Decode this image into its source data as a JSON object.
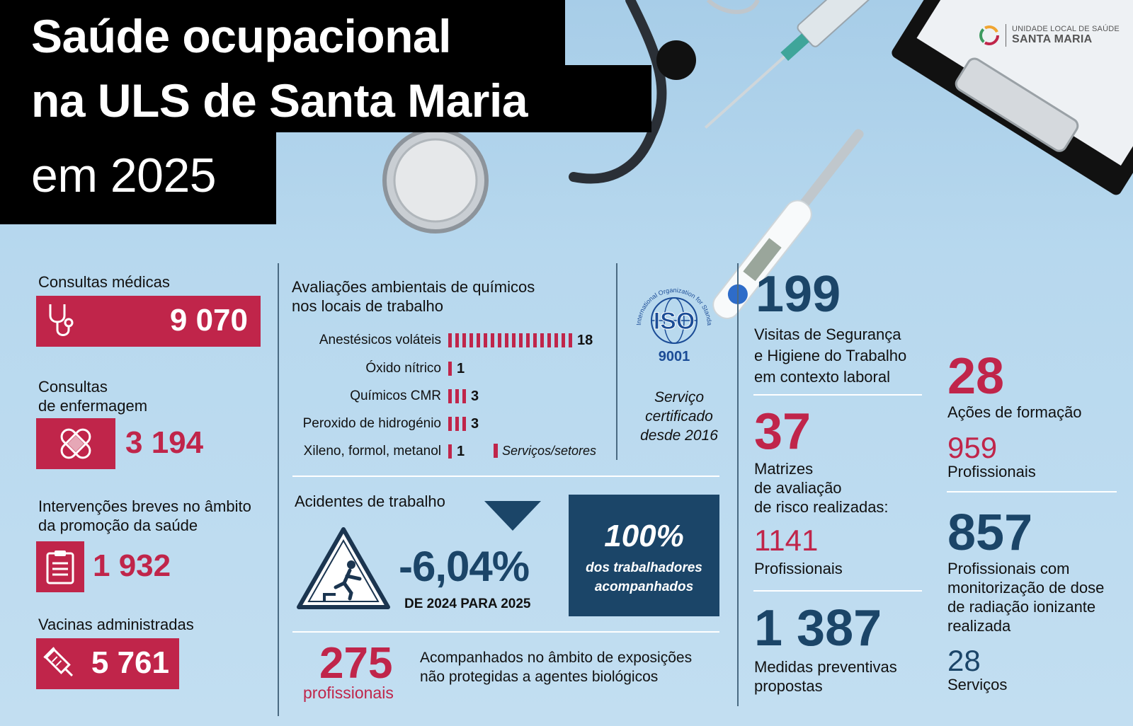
{
  "title": {
    "line1": "Saúde ocupacional",
    "line2": "na ULS de Santa Maria",
    "line3": "em 2025"
  },
  "logo": {
    "small": "UNIDADE LOCAL DE SAÚDE",
    "big": "SANTA MARIA"
  },
  "left": {
    "consultas_medicas": {
      "label": "Consultas médicas",
      "value": "9 070",
      "icon": "stethoscope-icon"
    },
    "consultas_enfermagem": {
      "label1": "Consultas",
      "label2": "de enfermagem",
      "value": "3 194",
      "icon": "bandage-icon"
    },
    "intervencoes": {
      "label1": "Intervenções breves no âmbito",
      "label2": "da promoção da saúde",
      "value": "1 932",
      "icon": "clipboard-icon"
    },
    "vacinas": {
      "label": "Vacinas administradas",
      "value": "5 761",
      "icon": "syringe-icon"
    }
  },
  "chemicals": {
    "title1": "Avaliações ambientais de químicos",
    "title2": "nos locais de trabalho",
    "legend": "Serviços/setores",
    "color": "#c0254a"
  },
  "chart_data": {
    "type": "bar",
    "categories": [
      "Anestésicos voláteis",
      "Óxido nítrico",
      "Químicos CMR",
      "Peroxido de hidrogénio",
      "Xileno, formol, metanol"
    ],
    "values": [
      18,
      1,
      3,
      3,
      1
    ],
    "value_labels": [
      "18",
      "1",
      "3",
      "3",
      "1"
    ],
    "series": [
      {
        "name": "Serviços/setores",
        "values": [
          18,
          1,
          3,
          3,
          1
        ]
      }
    ],
    "orientation": "horizontal"
  },
  "iso": {
    "ring_text": "International Organization for Standardization",
    "logo": "ISO",
    "number": "9001",
    "cert1": "Serviço",
    "cert2": "certificado",
    "cert3": "desde 2016"
  },
  "accidents": {
    "title": "Acidentes de trabalho",
    "change": "-6,04%",
    "period": "DE 2024 PARA 2025",
    "pct": "100%",
    "pct_label1": "dos trabalhadores",
    "pct_label2": "acompanhados",
    "icon": "fall-warning-icon"
  },
  "biological": {
    "value": "275",
    "unit": "profissionais",
    "text1": "Acompanhados no âmbito de exposições",
    "text2": "não protegidas a agentes biológicos"
  },
  "right_col1": {
    "visitas": {
      "value": "199",
      "l1": "Visitas de Segurança",
      "l2": "e Higiene do Trabalho",
      "l3": "em contexto laboral"
    },
    "matrizes": {
      "value": "37",
      "l1": "Matrizes",
      "l2": "de avaliação",
      "l3": "de risco realizadas:",
      "sub_value": "1141",
      "sub_label": "Profissionais"
    },
    "medidas": {
      "value": "1 387",
      "l1": "Medidas preventivas",
      "l2": "propostas"
    }
  },
  "right_col2": {
    "formacao": {
      "value": "28",
      "label": "Ações de formação",
      "sub_value": "959",
      "sub_label": "Profissionais"
    },
    "radiacao": {
      "value": "857",
      "l1": "Profissionais com",
      "l2": "monitorização de dose",
      "l3": "de radiação ionizante",
      "l4": "realizada",
      "sub_value": "28",
      "sub_label": "Serviços"
    }
  }
}
